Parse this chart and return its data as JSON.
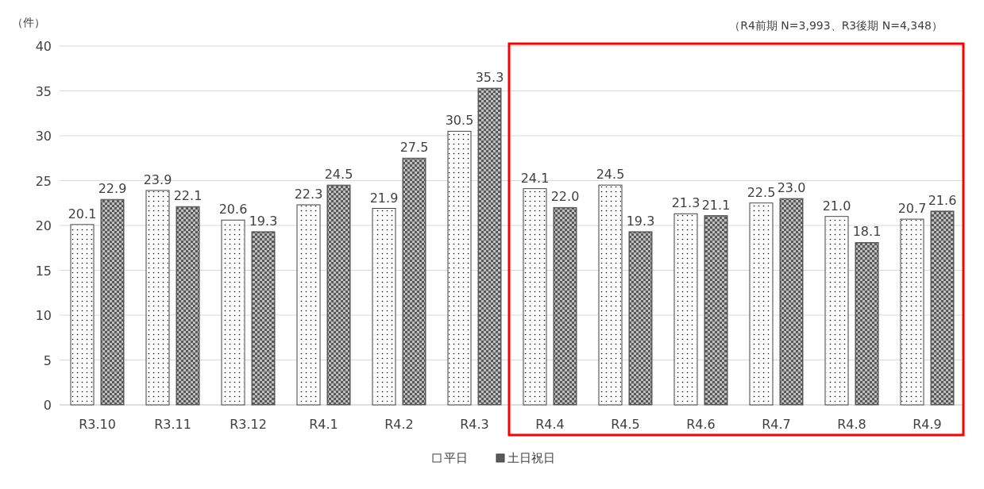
{
  "chart_data": {
    "type": "bar",
    "ylabel": "（件）",
    "annotations": [
      "（R4前期 N=3,993、R3後期 N=4,348）"
    ],
    "categories": [
      "R3.10",
      "R3.11",
      "R3.12",
      "R4.1",
      "R4.2",
      "R4.3",
      "R4.4",
      "R4.5",
      "R4.6",
      "R4.7",
      "R4.8",
      "R4.9"
    ],
    "series": [
      {
        "name": "平日",
        "color": "#ffffff",
        "values": [
          20.1,
          23.9,
          20.6,
          22.3,
          21.9,
          30.5,
          24.1,
          24.5,
          21.3,
          22.5,
          21.0,
          20.7
        ],
        "value_labels": [
          "20.1",
          "23.9",
          "20.6",
          "22.3",
          "21.9",
          "30.5",
          "24.1",
          "24.5",
          "21.3",
          "22.5",
          "21.0",
          "20.7"
        ]
      },
      {
        "name": "土日祝日",
        "color": "#595959",
        "values": [
          22.9,
          22.1,
          19.3,
          24.5,
          27.5,
          35.3,
          22.0,
          19.3,
          21.1,
          23.0,
          18.1,
          21.6
        ],
        "value_labels": [
          "22.9",
          "22.1",
          "19.3",
          "24.5",
          "27.5",
          "35.3",
          "22.0",
          "19.3",
          "21.1",
          "23.0",
          "18.1",
          "21.6"
        ]
      }
    ],
    "ylim": [
      0,
      40
    ],
    "yticks": [
      0,
      5,
      10,
      15,
      20,
      25,
      30,
      35,
      40
    ],
    "grid": "y",
    "legend": "bottom"
  }
}
